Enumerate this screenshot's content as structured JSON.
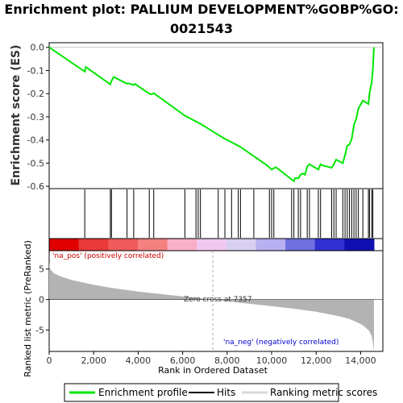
{
  "chart_data": {
    "title_line1": "Enrichment plot: PALLIUM DEVELOPMENT%GOBP%GO:",
    "title_line2": "0021543",
    "es_panel": {
      "type": "line",
      "ylabel": "Enrichment score (ES)",
      "ylim": [
        -0.61,
        0.02
      ],
      "yticks": [
        "0.0",
        "-0.1",
        "-0.2",
        "-0.3",
        "-0.4",
        "-0.5",
        "-0.6"
      ],
      "ytick_values": [
        0.0,
        -0.1,
        -0.2,
        -0.3,
        -0.4,
        -0.5,
        -0.6
      ],
      "series": [
        {
          "color": "#00e600",
          "x": [
            0,
            1600,
            1650,
            2750,
            2800,
            2900,
            3500,
            3550,
            3800,
            3850,
            4500,
            4600,
            4700,
            6100,
            6600,
            6800,
            7600,
            7900,
            8200,
            8500,
            8600,
            9200,
            9800,
            10000,
            10100,
            10200,
            11000,
            11050,
            11200,
            11300,
            11400,
            11500,
            11600,
            11700,
            12100,
            12200,
            12300,
            12700,
            12800,
            12900,
            13200,
            13300,
            13400,
            13500,
            13600,
            13700,
            13800,
            13900,
            14100,
            14350,
            14400,
            14500,
            14550,
            14600
          ],
          "y": [
            0.0,
            -0.105,
            -0.085,
            -0.16,
            -0.145,
            -0.128,
            -0.157,
            -0.155,
            -0.163,
            -0.158,
            -0.2,
            -0.203,
            -0.198,
            -0.295,
            -0.32,
            -0.33,
            -0.378,
            -0.395,
            -0.41,
            -0.425,
            -0.43,
            -0.47,
            -0.51,
            -0.528,
            -0.522,
            -0.518,
            -0.578,
            -0.565,
            -0.565,
            -0.55,
            -0.545,
            -0.55,
            -0.515,
            -0.505,
            -0.528,
            -0.505,
            -0.51,
            -0.52,
            -0.505,
            -0.485,
            -0.5,
            -0.465,
            -0.425,
            -0.42,
            -0.395,
            -0.335,
            -0.31,
            -0.265,
            -0.23,
            -0.245,
            -0.2,
            -0.15,
            -0.095,
            0.0
          ]
        }
      ]
    },
    "hits": [
      1600,
      2750,
      2800,
      3500,
      3800,
      4500,
      4700,
      6100,
      6600,
      6700,
      6800,
      7600,
      7900,
      8200,
      8500,
      8600,
      9200,
      9900,
      10000,
      10100,
      10900,
      11000,
      11200,
      11300,
      11600,
      11700,
      12100,
      12200,
      12700,
      12800,
      12900,
      13200,
      13300,
      13400,
      13500,
      13600,
      13700,
      13800,
      13900,
      14100,
      14350,
      14400,
      14500,
      14550
    ],
    "ranked_panel": {
      "type": "area",
      "ylabel": "Ranked list metric (PreRanked)",
      "ylim": [
        -8.5,
        8
      ],
      "yticks": [
        "5",
        "0",
        "-5"
      ],
      "ytick_values": [
        5,
        0,
        -5
      ],
      "fill_color": "#b3b3b3",
      "x": [
        0,
        50,
        200,
        500,
        1000,
        2000,
        3000,
        4000,
        5000,
        6000,
        7357,
        8000,
        9000,
        10000,
        11000,
        12000,
        13000,
        13500,
        14000,
        14200,
        14400,
        14500,
        14550,
        14600
      ],
      "y": [
        6.0,
        5.0,
        4.3,
        3.8,
        3.2,
        2.4,
        1.8,
        1.3,
        0.9,
        0.5,
        0.0,
        -0.3,
        -0.7,
        -1.1,
        -1.5,
        -2.0,
        -2.7,
        -3.2,
        -4.0,
        -4.5,
        -5.2,
        -6.0,
        -7.0,
        -8.5
      ],
      "pos_label": "'na_pos' (positively correlated)",
      "neg_label": "'na_neg' (negatively correlated)",
      "zero_cross_label": "Zero cross at 7357",
      "zero_cross": 7357,
      "pos_color": "#cc0000",
      "neg_color": "#0000cc"
    },
    "x_axis": {
      "xlabel": "Rank in Ordered Dataset",
      "xlim": [
        0,
        15000
      ],
      "xticks": [
        "0",
        "2,000",
        "4,000",
        "6,000",
        "8,000",
        "10,000",
        "12,000",
        "14,000"
      ],
      "xtick_values": [
        0,
        2000,
        4000,
        6000,
        8000,
        10000,
        12000,
        14000
      ],
      "n_genes": 14600
    },
    "legend": {
      "placement": "bottom",
      "items": [
        {
          "label": "Enrichment profile",
          "color": "#00e600"
        },
        {
          "label": "Hits",
          "color": "#000000"
        },
        {
          "label": "Ranking metric scores",
          "color": "#d9d9d9"
        }
      ]
    },
    "heatbar_colors": [
      "#e00000",
      "#e83a3a",
      "#f05a5a",
      "#f48080",
      "#f8b0c8",
      "#f0c8f0",
      "#d8d0f0",
      "#b8b0f0",
      "#7070e0",
      "#3030d0",
      "#1010b0"
    ]
  }
}
